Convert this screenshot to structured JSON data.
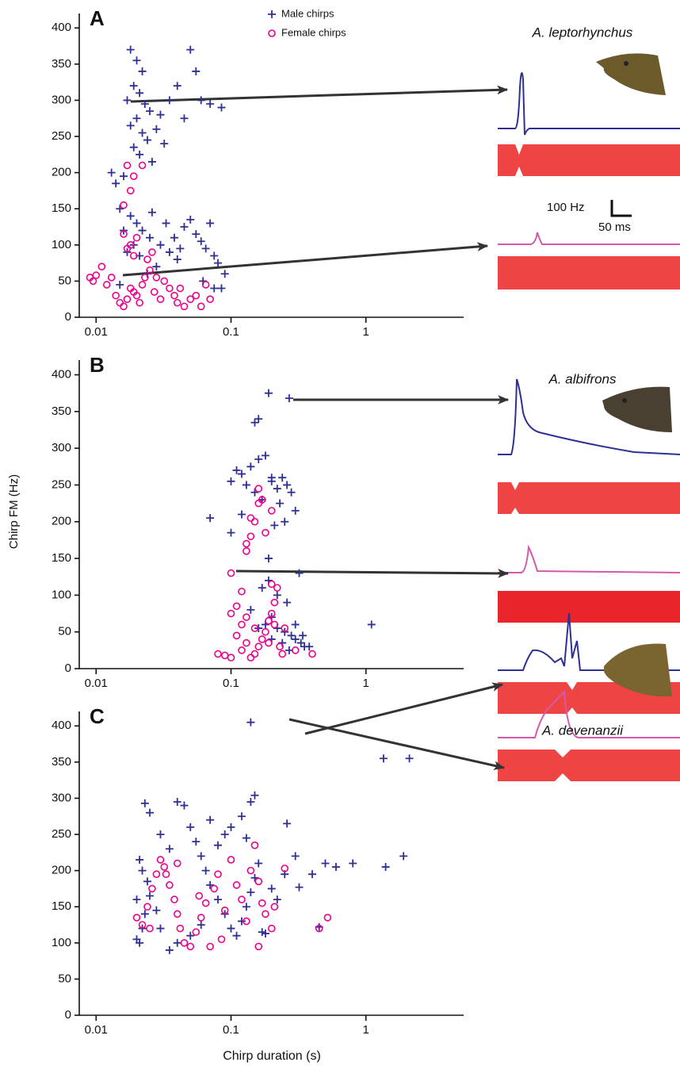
{
  "chart_data": [
    {
      "type": "scatter",
      "panel_label": "A",
      "species": "A. leptorhynchus",
      "scale_labels": [
        "100 Hz",
        "50 ms"
      ],
      "legend": "upper center",
      "xlog": true,
      "xlim": [
        0.0075,
        5.3
      ],
      "ylim": [
        0,
        420
      ],
      "xticks": [
        0.01,
        0.1,
        1
      ],
      "yticks": [
        0,
        50,
        100,
        150,
        200,
        250,
        300,
        350,
        400
      ],
      "series": [
        {
          "name": "Male chirps",
          "color": "#2e3192",
          "x": [
            0.018,
            0.02,
            0.022,
            0.019,
            0.021,
            0.017,
            0.023,
            0.025,
            0.02,
            0.018,
            0.022,
            0.024,
            0.019,
            0.021,
            0.026,
            0.028,
            0.03,
            0.035,
            0.04,
            0.05,
            0.055,
            0.06,
            0.07,
            0.085,
            0.045,
            0.032,
            0.016,
            0.014,
            0.013,
            0.015,
            0.018,
            0.02,
            0.022,
            0.025,
            0.03,
            0.035,
            0.04,
            0.045,
            0.05,
            0.055,
            0.06,
            0.065,
            0.07,
            0.075,
            0.08,
            0.09,
            0.028,
            0.024,
            0.019,
            0.017,
            0.016,
            0.021,
            0.033,
            0.038,
            0.042,
            0.026,
            0.085,
            0.075,
            0.062,
            0.015
          ],
          "values": [
            370,
            355,
            340,
            320,
            310,
            300,
            295,
            285,
            275,
            265,
            255,
            245,
            235,
            225,
            215,
            260,
            280,
            300,
            320,
            370,
            340,
            300,
            295,
            290,
            275,
            240,
            195,
            185,
            200,
            150,
            140,
            130,
            120,
            110,
            100,
            90,
            80,
            125,
            135,
            115,
            105,
            95,
            130,
            85,
            75,
            60,
            70,
            60,
            100,
            90,
            120,
            85,
            130,
            110,
            95,
            145,
            40,
            40,
            50,
            45
          ]
        },
        {
          "name": "Female chirps",
          "color": "#ec008c",
          "x": [
            0.009,
            0.0095,
            0.01,
            0.011,
            0.012,
            0.013,
            0.014,
            0.015,
            0.016,
            0.017,
            0.018,
            0.019,
            0.02,
            0.021,
            0.022,
            0.023,
            0.025,
            0.027,
            0.03,
            0.032,
            0.035,
            0.038,
            0.04,
            0.045,
            0.05,
            0.055,
            0.06,
            0.065,
            0.07,
            0.042,
            0.028,
            0.018,
            0.016,
            0.017,
            0.019,
            0.02,
            0.016,
            0.017,
            0.018,
            0.019,
            0.022,
            0.024,
            0.026
          ],
          "values": [
            55,
            50,
            58,
            70,
            45,
            55,
            30,
            20,
            15,
            25,
            40,
            35,
            30,
            20,
            45,
            55,
            65,
            35,
            25,
            50,
            40,
            30,
            20,
            15,
            25,
            30,
            15,
            45,
            25,
            40,
            55,
            100,
            115,
            95,
            85,
            110,
            155,
            210,
            175,
            195,
            210,
            80,
            90
          ]
        }
      ]
    },
    {
      "type": "scatter",
      "panel_label": "B",
      "species": "A. albifrons",
      "ylabel": "Chirp FM (Hz)",
      "xlog": true,
      "xlim": [
        0.0075,
        5.3
      ],
      "ylim": [
        0,
        420
      ],
      "xticks": [
        0.01,
        0.1,
        1
      ],
      "yticks": [
        0,
        50,
        100,
        150,
        200,
        250,
        300,
        350,
        400
      ],
      "series": [
        {
          "name": "Male chirps",
          "color": "#2e3192",
          "x": [
            0.07,
            0.19,
            0.16,
            0.15,
            0.27,
            0.2,
            0.18,
            0.16,
            0.14,
            0.12,
            0.1,
            0.11,
            0.13,
            0.15,
            0.17,
            0.2,
            0.22,
            0.24,
            0.26,
            0.28,
            0.3,
            0.23,
            0.25,
            0.21,
            0.1,
            0.12,
            0.19,
            0.17,
            0.22,
            0.32,
            0.26,
            0.2,
            0.18,
            0.22,
            0.25,
            0.28,
            0.3,
            0.33,
            0.35,
            0.27,
            0.24,
            0.2,
            0.16,
            0.14,
            0.3,
            0.34,
            0.38,
            1.1,
            0.19
          ],
          "values": [
            205,
            375,
            340,
            335,
            368,
            260,
            290,
            285,
            275,
            265,
            255,
            270,
            250,
            240,
            230,
            255,
            245,
            260,
            250,
            240,
            215,
            225,
            200,
            195,
            185,
            210,
            150,
            110,
            100,
            130,
            90,
            70,
            60,
            55,
            50,
            45,
            40,
            35,
            30,
            25,
            35,
            40,
            55,
            80,
            60,
            45,
            30,
            60,
            120
          ]
        },
        {
          "name": "Female chirps",
          "color": "#ec008c",
          "x": [
            0.1,
            0.11,
            0.1,
            0.12,
            0.11,
            0.13,
            0.12,
            0.14,
            0.15,
            0.16,
            0.17,
            0.18,
            0.19,
            0.2,
            0.21,
            0.22,
            0.2,
            0.15,
            0.13,
            0.23,
            0.24,
            0.25,
            0.3,
            0.4,
            0.08,
            0.09,
            0.1,
            0.13,
            0.14,
            0.13,
            0.16,
            0.17,
            0.15,
            0.14,
            0.18,
            0.2,
            0.16,
            0.12,
            0.19,
            0.21
          ],
          "values": [
            130,
            85,
            75,
            60,
            45,
            35,
            25,
            15,
            20,
            30,
            40,
            50,
            65,
            75,
            90,
            110,
            115,
            55,
            70,
            30,
            20,
            55,
            25,
            20,
            20,
            18,
            15,
            160,
            180,
            170,
            225,
            230,
            200,
            205,
            185,
            215,
            245,
            105,
            35,
            60
          ]
        }
      ]
    },
    {
      "type": "scatter",
      "panel_label": "C",
      "species": "A. devenanzii",
      "xlabel": "Chirp duration (s)",
      "xlog": true,
      "xlim": [
        0.0075,
        5.3
      ],
      "ylim": [
        0,
        420
      ],
      "xticks": [
        0.01,
        0.1,
        1
      ],
      "yticks": [
        0,
        50,
        100,
        150,
        200,
        250,
        300,
        350,
        400
      ],
      "series": [
        {
          "name": "Male chirps",
          "color": "#2e3192",
          "x": [
            0.14,
            1.35,
            2.1,
            0.02,
            0.021,
            0.022,
            0.023,
            0.025,
            0.024,
            0.022,
            0.021,
            0.023,
            0.025,
            0.03,
            0.035,
            0.04,
            0.045,
            0.05,
            0.055,
            0.06,
            0.065,
            0.07,
            0.08,
            0.09,
            0.1,
            0.11,
            0.12,
            0.13,
            0.14,
            0.15,
            0.16,
            0.17,
            0.18,
            0.15,
            0.14,
            0.12,
            0.1,
            0.09,
            0.08,
            0.07,
            0.06,
            0.05,
            0.04,
            0.035,
            0.03,
            0.028,
            0.2,
            0.22,
            0.26,
            0.32,
            0.3,
            0.5,
            0.6,
            0.8,
            1.4,
            1.9,
            0.45,
            0.4,
            0.25,
            0.02,
            0.13
          ],
          "values": [
            405,
            355,
            355,
            105,
            100,
            120,
            140,
            165,
            185,
            200,
            215,
            293,
            280,
            250,
            230,
            295,
            290,
            260,
            240,
            220,
            200,
            180,
            160,
            140,
            120,
            110,
            130,
            150,
            170,
            190,
            210,
            115,
            113,
            304,
            295,
            275,
            260,
            250,
            235,
            270,
            125,
            110,
            100,
            90,
            120,
            145,
            175,
            160,
            265,
            177,
            220,
            210,
            205,
            210,
            205,
            220,
            122,
            195,
            195,
            160,
            245
          ]
        },
        {
          "name": "Female chirps",
          "color": "#ec008c",
          "x": [
            0.02,
            0.022,
            0.024,
            0.026,
            0.028,
            0.03,
            0.032,
            0.035,
            0.038,
            0.04,
            0.042,
            0.045,
            0.05,
            0.055,
            0.06,
            0.065,
            0.07,
            0.075,
            0.08,
            0.09,
            0.1,
            0.11,
            0.12,
            0.13,
            0.14,
            0.15,
            0.16,
            0.17,
            0.18,
            0.2,
            0.25,
            0.45,
            0.52,
            0.033,
            0.04,
            0.025,
            0.058,
            0.085,
            0.16,
            0.21
          ],
          "values": [
            135,
            125,
            150,
            175,
            195,
            215,
            205,
            180,
            160,
            140,
            120,
            100,
            95,
            115,
            135,
            155,
            95,
            175,
            195,
            145,
            215,
            180,
            160,
            130,
            200,
            235,
            185,
            155,
            140,
            120,
            203,
            120,
            135,
            195,
            210,
            120,
            165,
            105,
            95,
            150
          ]
        }
      ]
    }
  ]
}
